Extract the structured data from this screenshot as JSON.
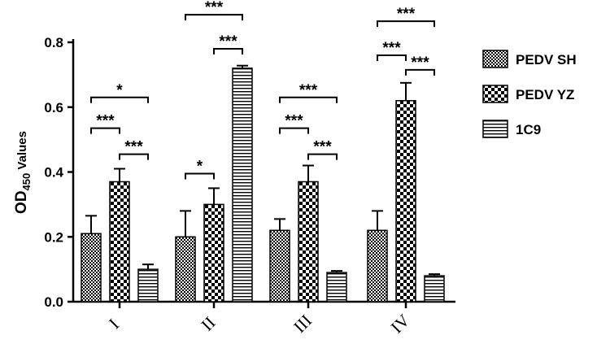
{
  "chart_data": {
    "type": "bar",
    "ylabel_main": "OD",
    "ylabel_sub": "450",
    "ylabel_rest": " Values",
    "ylim": [
      0,
      0.8
    ],
    "yticks": [
      "0.0",
      "0.2",
      "0.4",
      "0.6",
      "0.8"
    ],
    "categories": [
      "I",
      "II",
      "III",
      "IV"
    ],
    "series": [
      {
        "name": "PEDV SH",
        "pattern": "checker-small",
        "values": [
          0.21,
          0.2,
          0.22,
          0.22
        ],
        "errors": [
          0.055,
          0.08,
          0.035,
          0.06
        ]
      },
      {
        "name": "PEDV YZ",
        "pattern": "checker-large",
        "values": [
          0.37,
          0.3,
          0.37,
          0.62
        ],
        "errors": [
          0.04,
          0.05,
          0.05,
          0.055
        ]
      },
      {
        "name": "1C9",
        "pattern": "hstripe",
        "values": [
          0.1,
          0.72,
          0.09,
          0.08
        ],
        "errors": [
          0.015,
          0.008,
          0.005,
          0.005
        ]
      }
    ],
    "significance": [
      {
        "group": 0,
        "from": 0,
        "to": 1,
        "label": "***",
        "y": 0.535
      },
      {
        "group": 0,
        "from": 1,
        "to": 2,
        "label": "***",
        "y": 0.455
      },
      {
        "group": 0,
        "from": 0,
        "to": 2,
        "label": "*",
        "y": 0.63
      },
      {
        "group": 1,
        "from": 0,
        "to": 1,
        "label": "*",
        "y": 0.395
      },
      {
        "group": 1,
        "from": 1,
        "to": 2,
        "label": "***",
        "y": 0.78
      },
      {
        "group": 1,
        "from": 0,
        "to": 2,
        "label": "***",
        "y": 0.885
      },
      {
        "group": 2,
        "from": 0,
        "to": 1,
        "label": "***",
        "y": 0.535
      },
      {
        "group": 2,
        "from": 1,
        "to": 2,
        "label": "***",
        "y": 0.455
      },
      {
        "group": 2,
        "from": 0,
        "to": 2,
        "label": "***",
        "y": 0.63
      },
      {
        "group": 3,
        "from": 0,
        "to": 1,
        "label": "***",
        "y": 0.76
      },
      {
        "group": 3,
        "from": 1,
        "to": 2,
        "label": "***",
        "y": 0.715
      },
      {
        "group": 3,
        "from": 0,
        "to": 2,
        "label": "***",
        "y": 0.865
      }
    ],
    "legend_position": "right",
    "grid": false
  }
}
